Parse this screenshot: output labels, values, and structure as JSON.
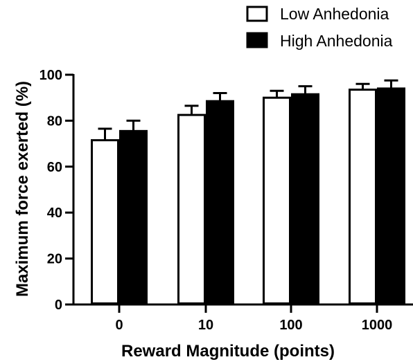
{
  "chart_data": {
    "type": "bar",
    "categories": [
      "0",
      "10",
      "100",
      "1000"
    ],
    "series": [
      {
        "name": "Low Anhedonia",
        "values": [
          71.5,
          82.5,
          90,
          93.5
        ],
        "errors": [
          5,
          4,
          3,
          2.5
        ],
        "fill": "#ffffff"
      },
      {
        "name": "High Anhedonia",
        "values": [
          75.5,
          88.5,
          91.5,
          94
        ],
        "errors": [
          4.5,
          3.5,
          3.5,
          3.5
        ],
        "fill": "#000000"
      }
    ],
    "xlabel": "Reward Magnitude (points)",
    "ylabel": "Maximum force exerted (%)",
    "ylim": [
      0,
      100
    ],
    "yticks": [
      0,
      20,
      40,
      60,
      80,
      100
    ],
    "legend_position": "top-right",
    "grid": false
  }
}
